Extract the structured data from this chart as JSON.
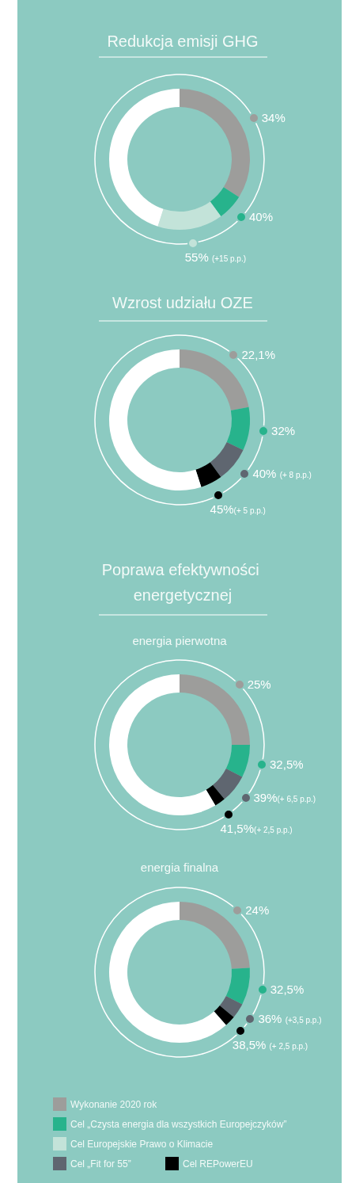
{
  "chart_data": [
    {
      "type": "donut",
      "title": "Redukcja emisji GHG",
      "categories": [
        "Wykonanie 2020 rok",
        "Cel „Czysta energia dla wszystkich Europejczyków”",
        "Cel Europejskie Prawo o Klimacie",
        null
      ],
      "values": [
        34,
        6,
        15,
        45
      ],
      "colors": [
        "#9d9d9b",
        "#27b38c",
        "#c3e3d9",
        "#ffffff"
      ],
      "annotations": [
        "34%",
        "40%",
        "55% (+15 p.p.)"
      ],
      "legend": "bottom"
    },
    {
      "type": "donut",
      "title": "Wzrost udziału OZE",
      "categories": [
        null,
        null,
        "Cel „Fit for 55”",
        "Cel REPowerEU",
        null
      ],
      "values": [
        22.1,
        9.9,
        8,
        5,
        55
      ],
      "colors": [
        "#9d9d9b",
        "#27b38c",
        "#5f6670",
        "#000000",
        "#ffffff"
      ],
      "annotations": [
        "22,1%",
        "32%",
        "40% (+ 8 p.p.)",
        "45%(+ 5 p.p.)"
      ],
      "legend": "bottom"
    },
    {
      "type": "donut",
      "title": "Poprawa efektywności energetycznej",
      "subtitle": "energia pierwotna",
      "categories": [
        null,
        null,
        null,
        null,
        null
      ],
      "values": [
        25,
        7.5,
        6.5,
        2.5,
        58.5
      ],
      "colors": [
        "#9d9d9b",
        "#27b38c",
        "#5f6670",
        "#000000",
        "#ffffff"
      ],
      "annotations": [
        "25%",
        "32,5%",
        "39%(+ 6,5 p.p.)",
        "41,5%(+ 2,5 p.p.)"
      ]
    },
    {
      "type": "donut",
      "subtitle": "energia finalna",
      "categories": [
        null,
        null,
        null,
        null,
        null
      ],
      "values": [
        24,
        8.5,
        3.5,
        2.5,
        61.5
      ],
      "colors": [
        "#9d9d9b",
        "#27b38c",
        "#5f6670",
        "#000000",
        "#ffffff"
      ],
      "annotations": [
        "24%",
        "32,5%",
        "36% (+3,5 p.p.)",
        "38,5% (+ 2,5 p.p.)"
      ]
    }
  ]
}
